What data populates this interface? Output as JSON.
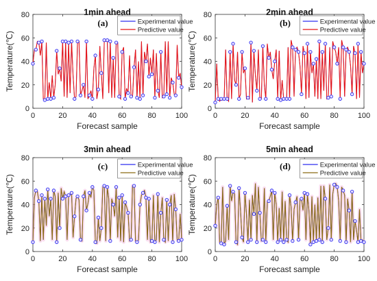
{
  "chart_data": [
    {
      "type": "line",
      "title": "1min ahead",
      "panel_label": "(a)",
      "xlabel": "Forecast sample",
      "ylabel": "Temperature(℃)",
      "xlim": [
        0,
        100
      ],
      "ylim": [
        0,
        80
      ],
      "xticks": [
        "0",
        "20",
        "40",
        "60",
        "80",
        "100"
      ],
      "yticks": [
        "0",
        "20",
        "40",
        "60",
        "80"
      ],
      "legend_position": "top-right",
      "series": [
        {
          "name": "Experimental value",
          "color": "#2e2ef0",
          "marker": "circle"
        },
        {
          "name": "Predictive value",
          "color": "#e81515"
        }
      ],
      "values": [
        38,
        50,
        50,
        57,
        56,
        45,
        57,
        8,
        7,
        56,
        8,
        22,
        8,
        28,
        9,
        20,
        49,
        29,
        34,
        23,
        57,
        10,
        57,
        9,
        56,
        13,
        57,
        28,
        8,
        10,
        57,
        57,
        11,
        15,
        20,
        9,
        57,
        8,
        11,
        15,
        8,
        34,
        45,
        8,
        16,
        53,
        30,
        8,
        58,
        57,
        58,
        13,
        57,
        9,
        43,
        9,
        56,
        56,
        10,
        8,
        48,
        52,
        8,
        17,
        13,
        45,
        10,
        10,
        35,
        50,
        9,
        40,
        8,
        57,
        11,
        48,
        40,
        55,
        27,
        43,
        29,
        50,
        9,
        47,
        15,
        9,
        48,
        9,
        10,
        57,
        12,
        57,
        9,
        26,
        22,
        12,
        11,
        54,
        26,
        30,
        18
      ]
    },
    {
      "type": "line",
      "title": "2min ahead",
      "panel_label": "(b)",
      "xlabel": "Forecast sample",
      "ylabel": "Temperature(℃)",
      "xlim": [
        0,
        100
      ],
      "ylim": [
        0,
        80
      ],
      "xticks": [
        "0",
        "20",
        "40",
        "60",
        "80",
        "100"
      ],
      "yticks": [
        "0",
        "20",
        "40",
        "60",
        "80"
      ],
      "legend_position": "top-right",
      "series": [
        {
          "name": "Experimental value",
          "color": "#2e2ef0",
          "marker": "circle"
        },
        {
          "name": "Predictive value",
          "color": "#e81515"
        }
      ],
      "values": [
        5,
        38,
        8,
        6,
        8,
        7,
        8,
        50,
        8,
        6,
        48,
        8,
        55,
        24,
        20,
        48,
        8,
        12,
        48,
        30,
        34,
        8,
        9,
        8,
        56,
        5,
        49,
        28,
        15,
        50,
        8,
        8,
        53,
        20,
        8,
        55,
        43,
        48,
        33,
        25,
        40,
        50,
        8,
        49,
        7,
        24,
        8,
        8,
        8,
        52,
        8,
        58,
        52,
        10,
        50,
        52,
        48,
        36,
        12,
        53,
        47,
        8,
        55,
        9,
        48,
        30,
        38,
        10,
        42,
        8,
        57,
        8,
        48,
        15,
        55,
        8,
        9,
        52,
        10,
        57,
        52,
        48,
        38,
        52,
        8,
        58,
        52,
        10,
        50,
        52,
        48,
        36,
        12,
        53,
        47,
        8,
        55,
        9,
        48,
        30,
        38
      ]
    },
    {
      "type": "line",
      "title": "3min ahead",
      "panel_label": "(c)",
      "xlabel": "Forecast sample",
      "ylabel": "Temperature(℃)",
      "xlim": [
        0,
        100
      ],
      "ylim": [
        0,
        80
      ],
      "xticks": [
        "0",
        "20",
        "40",
        "60",
        "80",
        "100"
      ],
      "yticks": [
        "0",
        "20",
        "40",
        "60",
        "80"
      ],
      "legend_position": "top-right",
      "series": [
        {
          "name": "Experimental value",
          "color": "#2e2ef0",
          "marker": "circle"
        },
        {
          "name": "Predictive value",
          "color": "#8a6a10"
        }
      ],
      "values": [
        8,
        46,
        52,
        51,
        43,
        9,
        48,
        10,
        45,
        22,
        53,
        30,
        45,
        10,
        52,
        47,
        8,
        50,
        20,
        54,
        45,
        51,
        47,
        10,
        48,
        48,
        50,
        12,
        30,
        45,
        47,
        44,
        10,
        9,
        47,
        52,
        35,
        41,
        50,
        46,
        55,
        52,
        8,
        7,
        29,
        9,
        20,
        55,
        56,
        9,
        55,
        45,
        9,
        45,
        40,
        30,
        55,
        12,
        46,
        9,
        48,
        8,
        42,
        38,
        33,
        9,
        10,
        56,
        56,
        9,
        8,
        10,
        40,
        48,
        50,
        52,
        46,
        10,
        45,
        8,
        9,
        48,
        8,
        10,
        49,
        8,
        33,
        46,
        10,
        8,
        44,
        9,
        40,
        48,
        8,
        49,
        36,
        10,
        9,
        32,
        10
      ]
    },
    {
      "type": "line",
      "title": "5min ahead",
      "panel_label": "(d)",
      "xlabel": "Forecast sample",
      "ylabel": "Temperature(℃)",
      "xlim": [
        0,
        100
      ],
      "ylim": [
        0,
        80
      ],
      "xticks": [
        "0",
        "20",
        "40",
        "60",
        "80",
        "100"
      ],
      "yticks": [
        "0",
        "20",
        "40",
        "60",
        "80"
      ],
      "legend_position": "top-right",
      "series": [
        {
          "name": "Experimental value",
          "color": "#2e2ef0",
          "marker": "circle"
        },
        {
          "name": "Predictive value",
          "color": "#8a6a10"
        }
      ],
      "values": [
        22,
        40,
        46,
        8,
        7,
        55,
        6,
        9,
        39,
        10,
        56,
        43,
        51,
        49,
        8,
        6,
        54,
        35,
        12,
        8,
        50,
        32,
        8,
        44,
        10,
        48,
        32,
        58,
        8,
        55,
        33,
        9,
        10,
        54,
        8,
        42,
        43,
        47,
        52,
        10,
        50,
        40,
        8,
        37,
        10,
        51,
        8,
        43,
        10,
        8,
        48,
        38,
        9,
        36,
        42,
        47,
        10,
        44,
        45,
        35,
        50,
        10,
        49,
        35,
        6,
        47,
        8,
        40,
        9,
        46,
        10,
        56,
        8,
        56,
        45,
        10,
        20,
        57,
        10,
        49,
        57,
        58,
        55,
        43,
        9,
        55,
        52,
        48,
        8,
        45,
        35,
        8,
        51,
        10,
        26,
        18,
        8,
        36,
        9,
        10,
        8
      ]
    }
  ]
}
